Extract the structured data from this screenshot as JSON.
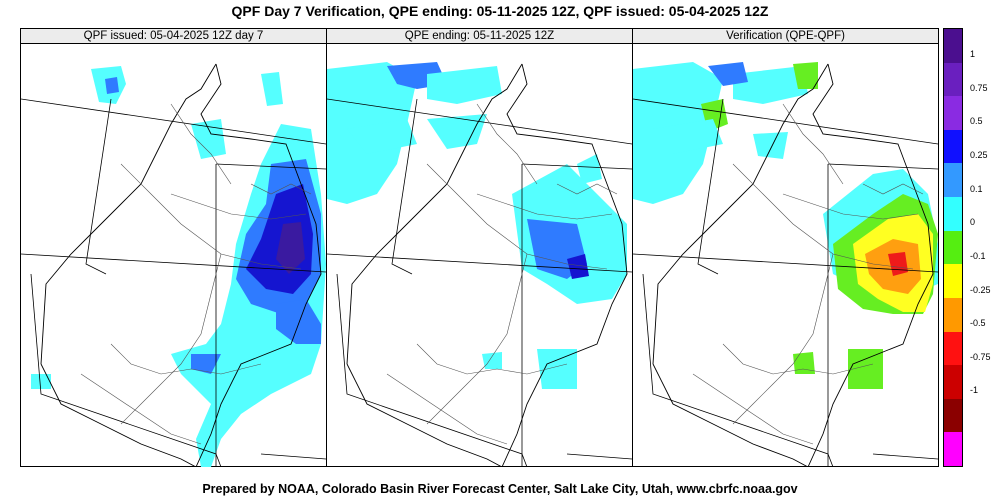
{
  "title": "QPF Day 7 Verification, QPE ending: 05-11-2025 12Z, QPF issued: 05-04-2025 12Z",
  "footer": "Prepared by NOAA, Colorado Basin River Forecast Center, Salt Lake City, Utah, www.cbrfc.noaa.gov",
  "panels": [
    {
      "header": "QPF issued: 05-04-2025 12Z day 7"
    },
    {
      "header": "QPE ending: 05-11-2025 12Z"
    },
    {
      "header": "Verification (QPE-QPF)"
    }
  ],
  "legend": {
    "colors": [
      "#4b0f8f",
      "#6a1fbf",
      "#8a2be2",
      "#1010ff",
      "#3399ff",
      "#33ffff",
      "#55ee11",
      "#ffff00",
      "#ff9900",
      "#ff1111",
      "#cc0000",
      "#8b0000",
      "#ff00ff"
    ],
    "labels": [
      "1",
      "0.75",
      "0.5",
      "0.25",
      "0.1",
      "0",
      "-0.1",
      "-0.25",
      "-0.5",
      "-0.75",
      "-1"
    ]
  },
  "map_colors": {
    "light_cyan": "#55ffff",
    "blue": "#2f7bff",
    "dark_blue": "#1515d0",
    "indigo": "#3a1aa0",
    "green": "#66ee22",
    "yellow": "#ffff22",
    "orange": "#ff9f10",
    "red": "#ee1a1a"
  }
}
